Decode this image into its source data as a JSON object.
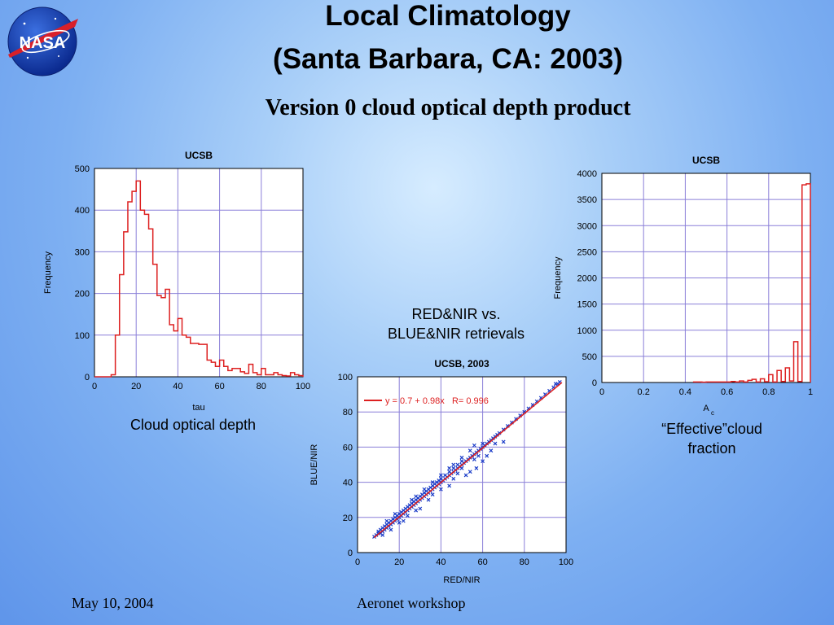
{
  "slide": {
    "title_line1": "Local Climatology",
    "title_line2": "(Santa Barbara, CA: 2003)",
    "subtitle": "Version 0 cloud optical depth product",
    "logo_text": "NASA",
    "caption_tau": "Cloud optical depth",
    "caption_scatter_line1": "RED&NIR vs.",
    "caption_scatter_line2": "BLUE&NIR retrievals",
    "caption_ac_line1": "“Effective”cloud",
    "caption_ac_line2": "fraction",
    "footer_date": "May 10, 2004",
    "footer_event": "Aeronet workshop"
  },
  "colors": {
    "series_red": "#dd2020",
    "series_blue": "#1a3cc8",
    "grid": "#8a7fd8"
  },
  "chart_data": [
    {
      "type": "bar",
      "title": "UCSB",
      "xlabel": "tau",
      "ylabel": "Frequency",
      "xlim": [
        0,
        100
      ],
      "ylim": [
        0,
        500
      ],
      "xticks": [
        0,
        20,
        40,
        60,
        80,
        100
      ],
      "yticks": [
        0,
        100,
        200,
        300,
        400,
        500
      ],
      "bin_width": 2,
      "bin_start": [
        0,
        2,
        4,
        6,
        8,
        10,
        12,
        14,
        16,
        18,
        20,
        22,
        24,
        26,
        28,
        30,
        32,
        34,
        36,
        38,
        40,
        42,
        44,
        46,
        48,
        50,
        52,
        54,
        56,
        58,
        60,
        62,
        64,
        66,
        68,
        70,
        72,
        74,
        76,
        78,
        80,
        82,
        84,
        86,
        88,
        90,
        92,
        94,
        96,
        98
      ],
      "values": [
        0,
        0,
        0,
        0,
        5,
        100,
        245,
        348,
        420,
        445,
        470,
        400,
        390,
        355,
        270,
        195,
        190,
        210,
        125,
        110,
        140,
        100,
        95,
        80,
        80,
        78,
        78,
        40,
        35,
        25,
        40,
        25,
        15,
        20,
        20,
        12,
        8,
        30,
        10,
        5,
        20,
        5,
        5,
        10,
        5,
        3,
        2,
        10,
        5,
        3
      ],
      "grid": true
    },
    {
      "type": "scatter",
      "title": "UCSB, 2003",
      "xlabel": "RED/NIR",
      "ylabel": "BLUE/NIR",
      "xlim": [
        0,
        100
      ],
      "ylim": [
        0,
        100
      ],
      "xticks": [
        0,
        20,
        40,
        60,
        80,
        100
      ],
      "yticks": [
        0,
        20,
        40,
        60,
        80,
        100
      ],
      "fit_label": "y = 0.7 + 0.98x   R= 0.996",
      "fit": {
        "intercept": 0.7,
        "slope": 0.98,
        "x_range": [
          8,
          98
        ]
      },
      "points": [
        [
          8,
          9
        ],
        [
          9,
          10
        ],
        [
          10,
          11
        ],
        [
          10,
          12
        ],
        [
          11,
          11
        ],
        [
          11,
          13
        ],
        [
          12,
          12
        ],
        [
          12,
          14
        ],
        [
          13,
          13
        ],
        [
          13,
          15
        ],
        [
          14,
          14
        ],
        [
          14,
          16
        ],
        [
          15,
          15
        ],
        [
          15,
          17
        ],
        [
          16,
          16
        ],
        [
          16,
          18
        ],
        [
          17,
          17
        ],
        [
          17,
          19
        ],
        [
          18,
          18
        ],
        [
          18,
          20
        ],
        [
          19,
          19
        ],
        [
          19,
          21
        ],
        [
          20,
          20
        ],
        [
          20,
          22
        ],
        [
          21,
          21
        ],
        [
          21,
          23
        ],
        [
          22,
          22
        ],
        [
          22,
          24
        ],
        [
          23,
          23
        ],
        [
          23,
          25
        ],
        [
          24,
          24
        ],
        [
          24,
          26
        ],
        [
          25,
          25
        ],
        [
          25,
          27
        ],
        [
          26,
          26
        ],
        [
          26,
          28
        ],
        [
          27,
          27
        ],
        [
          27,
          29
        ],
        [
          28,
          28
        ],
        [
          28,
          30
        ],
        [
          29,
          29
        ],
        [
          29,
          31
        ],
        [
          30,
          30
        ],
        [
          30,
          32
        ],
        [
          31,
          31
        ],
        [
          31,
          33
        ],
        [
          32,
          32
        ],
        [
          32,
          34
        ],
        [
          33,
          33
        ],
        [
          33,
          35
        ],
        [
          34,
          34
        ],
        [
          34,
          36
        ],
        [
          35,
          35
        ],
        [
          35,
          37
        ],
        [
          36,
          36
        ],
        [
          36,
          38
        ],
        [
          37,
          37
        ],
        [
          37,
          39
        ],
        [
          38,
          38
        ],
        [
          38,
          40
        ],
        [
          39,
          39
        ],
        [
          39,
          41
        ],
        [
          40,
          40
        ],
        [
          40,
          42
        ],
        [
          41,
          41
        ],
        [
          42,
          42
        ],
        [
          42,
          44
        ],
        [
          43,
          43
        ],
        [
          44,
          44
        ],
        [
          44,
          46
        ],
        [
          45,
          45
        ],
        [
          46,
          46
        ],
        [
          46,
          48
        ],
        [
          47,
          47
        ],
        [
          48,
          48
        ],
        [
          48,
          50
        ],
        [
          49,
          49
        ],
        [
          50,
          50
        ],
        [
          50,
          52
        ],
        [
          51,
          51
        ],
        [
          52,
          52
        ],
        [
          53,
          53
        ],
        [
          54,
          54
        ],
        [
          55,
          55
        ],
        [
          56,
          56
        ],
        [
          57,
          57
        ],
        [
          58,
          58
        ],
        [
          59,
          59
        ],
        [
          60,
          60
        ],
        [
          61,
          61
        ],
        [
          62,
          62
        ],
        [
          63,
          63
        ],
        [
          64,
          64
        ],
        [
          65,
          65
        ],
        [
          66,
          66
        ],
        [
          67,
          67
        ],
        [
          68,
          68
        ],
        [
          70,
          70
        ],
        [
          72,
          72
        ],
        [
          74,
          74
        ],
        [
          76,
          76
        ],
        [
          78,
          78
        ],
        [
          80,
          80
        ],
        [
          82,
          82
        ],
        [
          84,
          84
        ],
        [
          86,
          86
        ],
        [
          88,
          88
        ],
        [
          90,
          90
        ],
        [
          92,
          92
        ],
        [
          94,
          94
        ],
        [
          95,
          96
        ],
        [
          96,
          96
        ],
        [
          97,
          97
        ],
        [
          22,
          18
        ],
        [
          30,
          25
        ],
        [
          36,
          33
        ],
        [
          44,
          38
        ],
        [
          46,
          42
        ],
        [
          52,
          44
        ],
        [
          54,
          46
        ],
        [
          50,
          48
        ],
        [
          57,
          48
        ],
        [
          56,
          53
        ],
        [
          58,
          55
        ],
        [
          62,
          55
        ],
        [
          64,
          58
        ],
        [
          70,
          63
        ],
        [
          66,
          62
        ],
        [
          60,
          52
        ],
        [
          48,
          45
        ],
        [
          40,
          36
        ],
        [
          34,
          30
        ],
        [
          28,
          24
        ],
        [
          24,
          21
        ],
        [
          20,
          17
        ],
        [
          16,
          13
        ],
        [
          12,
          10
        ],
        [
          28,
          32
        ],
        [
          32,
          36
        ],
        [
          36,
          40
        ],
        [
          44,
          48
        ],
        [
          50,
          54
        ],
        [
          54,
          58
        ],
        [
          56,
          61
        ],
        [
          60,
          62
        ],
        [
          46,
          50
        ],
        [
          40,
          44
        ],
        [
          26,
          30
        ],
        [
          18,
          22
        ],
        [
          14,
          18
        ]
      ],
      "grid": true
    },
    {
      "type": "bar",
      "title": "UCSB",
      "xlabel": "A",
      "xlabel_sub": "c",
      "ylabel": "Frequency",
      "xlim": [
        0,
        1
      ],
      "ylim": [
        0,
        4000
      ],
      "xticks": [
        0,
        0.2,
        0.4,
        0.6,
        0.8,
        1
      ],
      "yticks": [
        0,
        500,
        1000,
        1500,
        2000,
        2500,
        3000,
        3500,
        4000
      ],
      "bin_width": 0.02,
      "bin_start": [
        0.44,
        0.46,
        0.48,
        0.5,
        0.52,
        0.54,
        0.56,
        0.58,
        0.6,
        0.62,
        0.64,
        0.66,
        0.68,
        0.7,
        0.72,
        0.74,
        0.76,
        0.78,
        0.8,
        0.82,
        0.84,
        0.86,
        0.88,
        0.9,
        0.92,
        0.94,
        0.96,
        0.98
      ],
      "values": [
        10,
        10,
        5,
        10,
        10,
        10,
        10,
        10,
        10,
        20,
        10,
        30,
        10,
        40,
        60,
        10,
        70,
        15,
        150,
        10,
        230,
        20,
        280,
        30,
        780,
        20,
        3780,
        3800
      ],
      "grid": true
    }
  ]
}
